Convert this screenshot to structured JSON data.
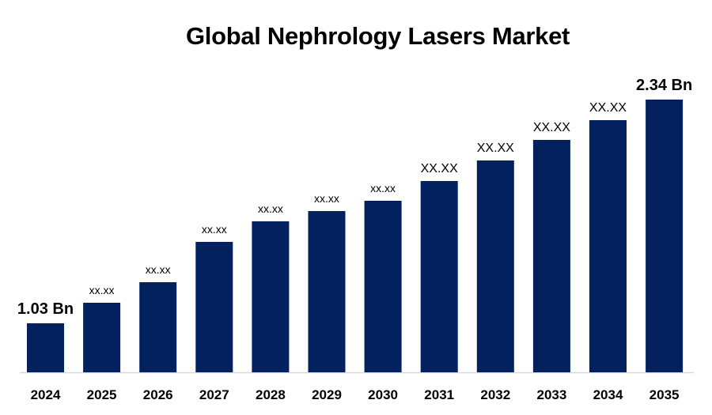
{
  "chart_data": {
    "type": "bar",
    "title": "Global Nephrology Lasers Market",
    "xlabel": "",
    "ylabel": "",
    "categories": [
      "2024",
      "2025",
      "2026",
      "2027",
      "2028",
      "2029",
      "2030",
      "2031",
      "2032",
      "2033",
      "2034",
      "2035"
    ],
    "values": [
      1.03,
      1.25,
      1.5,
      1.88,
      2.26,
      2.4,
      2.53,
      2.85,
      3.2,
      3.42,
      3.65,
      2.34
    ],
    "data_labels": [
      "1.03 Bn",
      "xx.xx",
      "xx.xx",
      "xx.xx",
      "xx.xx",
      "xx.xx",
      "xx.xx",
      "XX.XX",
      "XX.XX",
      "XX.XX",
      "XX.XX",
      "2.34 Bn"
    ],
    "ylim": [
      0,
      4.5
    ],
    "grid": false,
    "legend": "none",
    "bar_color": "#03215F"
  }
}
